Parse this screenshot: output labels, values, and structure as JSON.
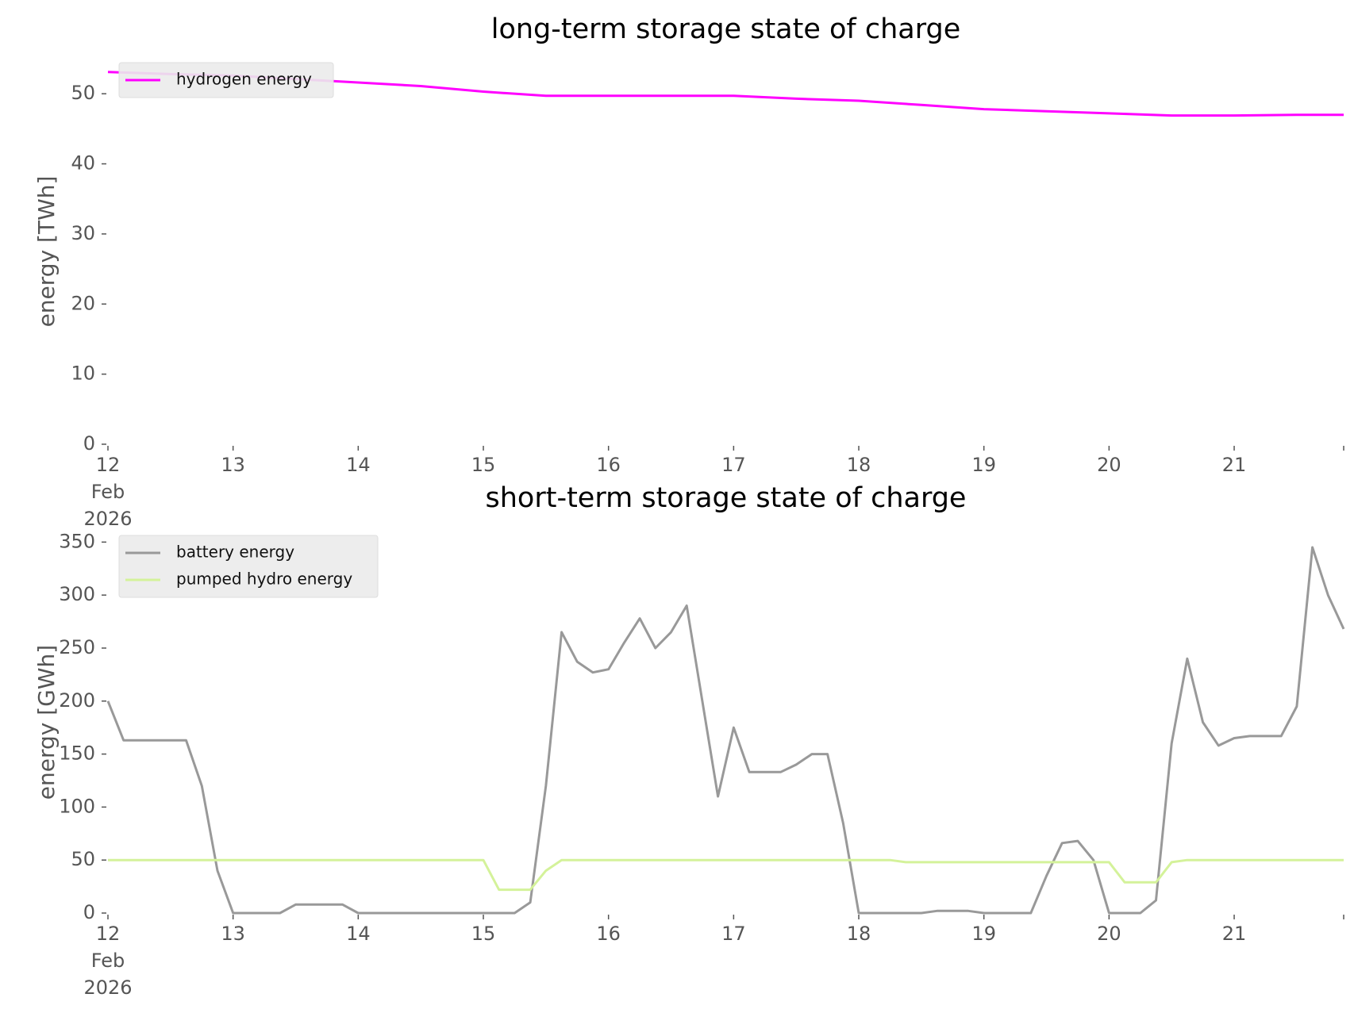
{
  "chart_data": [
    {
      "type": "line",
      "title": "long-term storage state of charge",
      "y_label": "energy [TWh]",
      "x": [
        "2026-02-12T00:00",
        "2026-02-12T12:00",
        "2026-02-13T00:00",
        "2026-02-13T12:00",
        "2026-02-14T00:00",
        "2026-02-14T12:00",
        "2026-02-15T00:00",
        "2026-02-15T12:00",
        "2026-02-16T00:00",
        "2026-02-16T12:00",
        "2026-02-17T00:00",
        "2026-02-17T12:00",
        "2026-02-18T00:00",
        "2026-02-18T12:00",
        "2026-02-19T00:00",
        "2026-02-19T12:00",
        "2026-02-20T00:00",
        "2026-02-20T12:00",
        "2026-02-21T00:00",
        "2026-02-21T12:00",
        "2026-02-21T21:00"
      ],
      "series": [
        {
          "name": "hydrogen energy",
          "color": "#ff00ff",
          "values": [
            53.1,
            52.8,
            52.6,
            52.1,
            51.6,
            51.1,
            50.3,
            49.7,
            49.7,
            49.7,
            49.7,
            49.3,
            49.0,
            48.4,
            47.8,
            47.5,
            47.2,
            46.9,
            46.9,
            47.0,
            47.0
          ]
        }
      ],
      "xlim": [
        "2026-02-12T00:00",
        "2026-02-21T21:00"
      ],
      "xticks": [
        {
          "value": "2026-02-12T00:00",
          "label": "12\nFeb\n2026"
        },
        {
          "value": "2026-02-13T00:00",
          "label": "13"
        },
        {
          "value": "2026-02-14T00:00",
          "label": "14"
        },
        {
          "value": "2026-02-15T00:00",
          "label": "15"
        },
        {
          "value": "2026-02-16T00:00",
          "label": "16"
        },
        {
          "value": "2026-02-17T00:00",
          "label": "17"
        },
        {
          "value": "2026-02-18T00:00",
          "label": "18"
        },
        {
          "value": "2026-02-19T00:00",
          "label": "19"
        },
        {
          "value": "2026-02-20T00:00",
          "label": "20"
        },
        {
          "value": "2026-02-21T00:00",
          "label": "21"
        }
      ],
      "ylim": [
        0,
        55
      ],
      "yticks": [
        0,
        10,
        20,
        30,
        40,
        50
      ],
      "legend": "upper left"
    },
    {
      "type": "line",
      "title": "short-term storage state of charge",
      "y_label": "energy [GWh]",
      "x": [
        "2026-02-12T00:00",
        "2026-02-12T03:00",
        "2026-02-12T06:00",
        "2026-02-12T09:00",
        "2026-02-12T12:00",
        "2026-02-12T15:00",
        "2026-02-12T18:00",
        "2026-02-12T21:00",
        "2026-02-13T00:00",
        "2026-02-13T03:00",
        "2026-02-13T06:00",
        "2026-02-13T09:00",
        "2026-02-13T12:00",
        "2026-02-13T15:00",
        "2026-02-13T18:00",
        "2026-02-13T21:00",
        "2026-02-14T00:00",
        "2026-02-14T03:00",
        "2026-02-14T06:00",
        "2026-02-14T09:00",
        "2026-02-14T12:00",
        "2026-02-14T15:00",
        "2026-02-14T18:00",
        "2026-02-14T21:00",
        "2026-02-15T00:00",
        "2026-02-15T03:00",
        "2026-02-15T06:00",
        "2026-02-15T09:00",
        "2026-02-15T12:00",
        "2026-02-15T15:00",
        "2026-02-15T18:00",
        "2026-02-15T21:00",
        "2026-02-16T00:00",
        "2026-02-16T03:00",
        "2026-02-16T06:00",
        "2026-02-16T09:00",
        "2026-02-16T12:00",
        "2026-02-16T15:00",
        "2026-02-16T18:00",
        "2026-02-16T21:00",
        "2026-02-17T00:00",
        "2026-02-17T03:00",
        "2026-02-17T06:00",
        "2026-02-17T09:00",
        "2026-02-17T12:00",
        "2026-02-17T15:00",
        "2026-02-17T18:00",
        "2026-02-17T21:00",
        "2026-02-18T00:00",
        "2026-02-18T03:00",
        "2026-02-18T06:00",
        "2026-02-18T09:00",
        "2026-02-18T12:00",
        "2026-02-18T15:00",
        "2026-02-18T18:00",
        "2026-02-18T21:00",
        "2026-02-19T00:00",
        "2026-02-19T03:00",
        "2026-02-19T06:00",
        "2026-02-19T09:00",
        "2026-02-19T12:00",
        "2026-02-19T15:00",
        "2026-02-19T18:00",
        "2026-02-19T21:00",
        "2026-02-20T00:00",
        "2026-02-20T03:00",
        "2026-02-20T06:00",
        "2026-02-20T09:00",
        "2026-02-20T12:00",
        "2026-02-20T15:00",
        "2026-02-20T18:00",
        "2026-02-20T21:00",
        "2026-02-21T00:00",
        "2026-02-21T03:00",
        "2026-02-21T06:00",
        "2026-02-21T09:00",
        "2026-02-21T12:00",
        "2026-02-21T15:00",
        "2026-02-21T18:00",
        "2026-02-21T21:00"
      ],
      "series": [
        {
          "name": "battery energy",
          "color": "#999999",
          "values": [
            200,
            163,
            163,
            163,
            163,
            163,
            120,
            40,
            0,
            0,
            0,
            0,
            8,
            8,
            8,
            8,
            0,
            0,
            0,
            0,
            0,
            0,
            0,
            0,
            0,
            0,
            0,
            10,
            120,
            265,
            237,
            227,
            230,
            255,
            278,
            250,
            265,
            290,
            200,
            110,
            175,
            133,
            133,
            133,
            140,
            150,
            150,
            85,
            0,
            0,
            0,
            0,
            0,
            2,
            2,
            2,
            0,
            0,
            0,
            0,
            35,
            66,
            68,
            50,
            0,
            0,
            0,
            12,
            160,
            240,
            180,
            158,
            165,
            167,
            167,
            167,
            195,
            345,
            300,
            268
          ]
        },
        {
          "name": "pumped hydro energy",
          "color": "#d4f29a",
          "values": [
            50,
            50,
            50,
            50,
            50,
            50,
            50,
            50,
            50,
            50,
            50,
            50,
            50,
            50,
            50,
            50,
            50,
            50,
            50,
            50,
            50,
            50,
            50,
            50,
            50,
            22,
            22,
            22,
            40,
            50,
            50,
            50,
            50,
            50,
            50,
            50,
            50,
            50,
            50,
            50,
            50,
            50,
            50,
            50,
            50,
            50,
            50,
            50,
            50,
            50,
            50,
            48,
            48,
            48,
            48,
            48,
            48,
            48,
            48,
            48,
            48,
            48,
            48,
            48,
            48,
            29,
            29,
            29,
            48,
            50,
            50,
            50,
            50,
            50,
            50,
            50,
            50,
            50,
            50,
            50
          ]
        }
      ],
      "xlim": [
        "2026-02-12T00:00",
        "2026-02-21T21:00"
      ],
      "xticks": [
        {
          "value": "2026-02-12T00:00",
          "label": "12\nFeb\n2026"
        },
        {
          "value": "2026-02-13T00:00",
          "label": "13"
        },
        {
          "value": "2026-02-14T00:00",
          "label": "14"
        },
        {
          "value": "2026-02-15T00:00",
          "label": "15"
        },
        {
          "value": "2026-02-16T00:00",
          "label": "16"
        },
        {
          "value": "2026-02-17T00:00",
          "label": "17"
        },
        {
          "value": "2026-02-18T00:00",
          "label": "18"
        },
        {
          "value": "2026-02-19T00:00",
          "label": "19"
        },
        {
          "value": "2026-02-20T00:00",
          "label": "20"
        },
        {
          "value": "2026-02-21T00:00",
          "label": "21"
        }
      ],
      "ylim": [
        0,
        360
      ],
      "yticks": [
        0,
        50,
        100,
        150,
        200,
        250,
        300,
        350
      ],
      "legend": "upper left"
    }
  ]
}
